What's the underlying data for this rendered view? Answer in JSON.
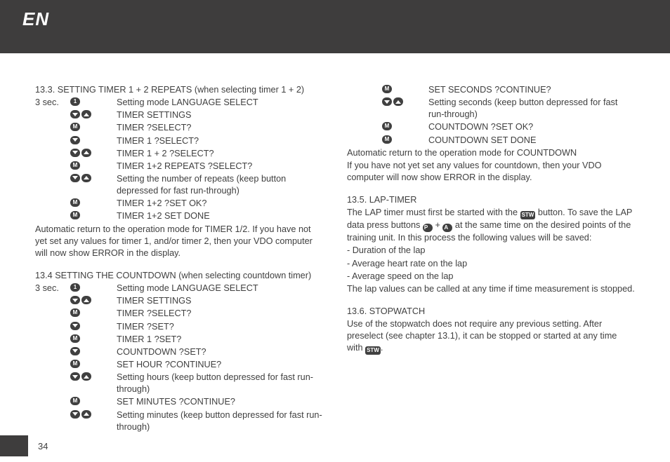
{
  "header": {
    "lang": "EN"
  },
  "footer": {
    "page": "34"
  },
  "icons": {
    "one": "1",
    "m": "M",
    "p": "P",
    "a": "A",
    "stw": "STW"
  },
  "left": {
    "h1": "13.3. SETTING TIMER 1 + 2 REPEATS (when selecting timer 1 + 2)",
    "lead1": "3 sec.",
    "r1": "Setting mode LANGUAGE SELECT",
    "r2": "TIMER SETTINGS",
    "r3": "TIMER ?SELECT?",
    "r4": "TIMER 1 ?SELECT?",
    "r5": "TIMER 1 + 2 ?SELECT?",
    "r6": "TIMER 1+2 REPEATS ?SELECT?",
    "r7": "Setting the number of repeats (keep button depressed for fast run-through)",
    "r8": "TIMER 1+2 ?SET OK?",
    "r9": "TIMER 1+2 SET DONE",
    "p1": "Automatic return to the operation mode for TIMER 1/2. If you have not yet set any values for timer 1, and/or timer 2, then your VDO computer will now show ERROR in the display.",
    "h2": "13.4 SETTING THE COUNTDOWN (when selecting countdown timer)",
    "lead2": "3 sec.",
    "s1": "Setting mode LANGUAGE SELECT",
    "s2": "TIMER SETTINGS",
    "s3": "TIMER ?SELECT?",
    "s4": "TIMER ?SET?",
    "s5": "TIMER 1 ?SET?",
    "s6": "COUNTDOWN ?SET?",
    "s7": "SET HOUR ?CONTINUE?",
    "s8": "Setting hours (keep button depressed for fast run-through)",
    "s9": "SET MINUTES ?CONTINUE?",
    "s10": "Setting minutes (keep button depressed for fast run-through)"
  },
  "right": {
    "t1": "SET SECONDS ?CONTINUE?",
    "t2": "Setting seconds (keep button depressed for fast run-through)",
    "t3": "COUNTDOWN ?SET OK?",
    "t4": "COUNTDOWN SET DONE",
    "p1": "Automatic return to the operation mode for COUNTDOWN",
    "p2": "If you have not yet set any values for countdown, then your VDO computer will now show ERROR in the display.",
    "h3": "13.5. LAP-TIMER",
    "lap_a": "The LAP timer must first be started with the ",
    "lap_b": " button. To save the LAP data press buttons ",
    "lap_c": " at the same time on the desired points of the training unit. In this process the following values will be saved:",
    "plus": " + ",
    "b1": "- Duration of the lap",
    "b2": "- Average heart rate on the lap",
    "b3": "- Average speed on the lap",
    "p3": "The lap values can be called at any time if time measurement is stopped.",
    "h4": "13.6. STOPWATCH",
    "sw_a": "Use of the stopwatch does not require any previous setting. After preselect (see chapter 13.1), it can be stopped or started at any time with ",
    "sw_b": "."
  }
}
